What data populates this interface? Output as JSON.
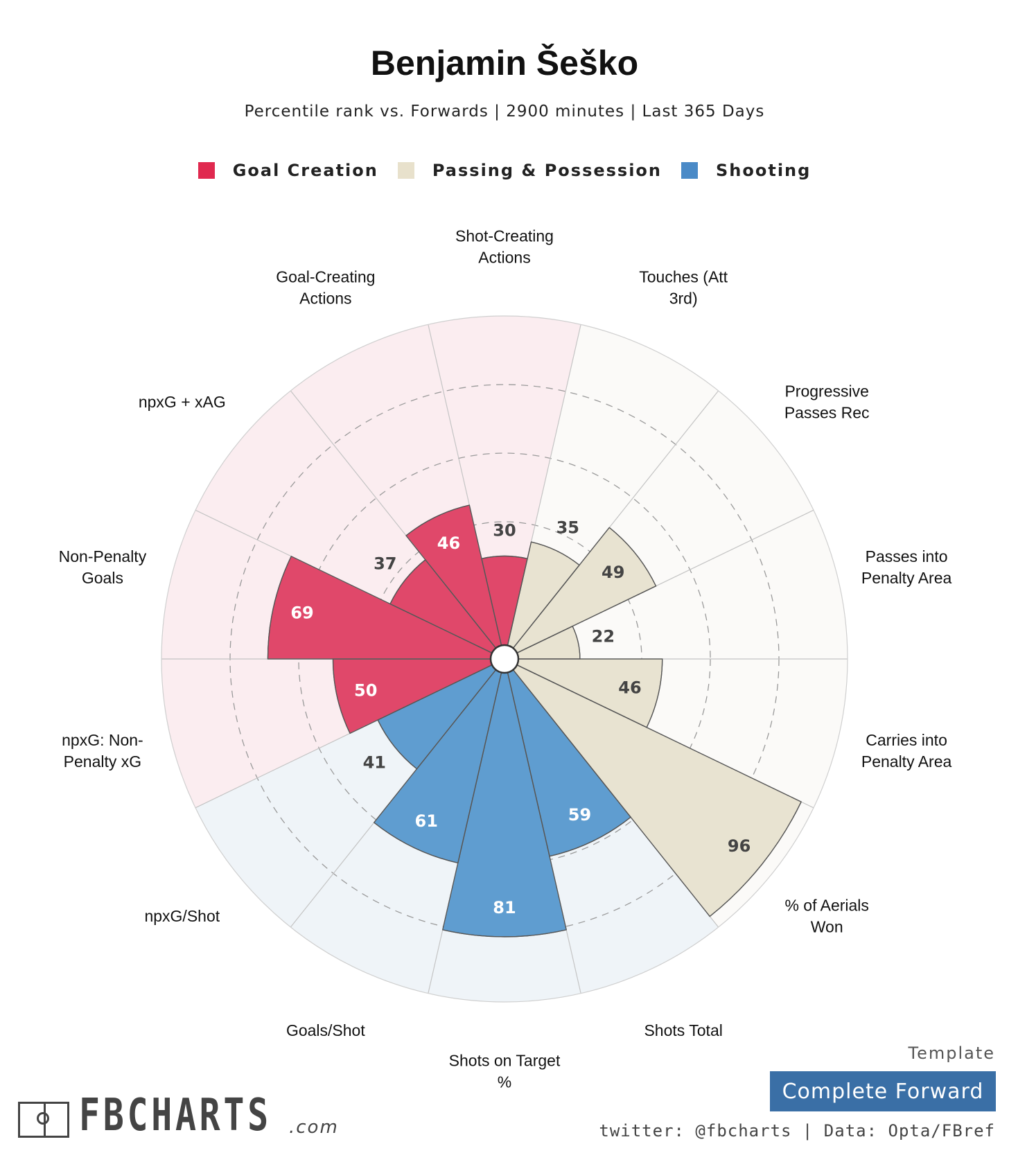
{
  "title": "Benjamin Šeško",
  "subtitle": "Percentile rank vs. Forwards | 2900 minutes | Last 365 Days",
  "legend": [
    {
      "label": "Goal Creation",
      "color": "#e0294f"
    },
    {
      "label": "Passing & Possession",
      "color": "#e8e1cc"
    },
    {
      "label": "Shooting",
      "color": "#4a8ac7"
    }
  ],
  "chart_data": {
    "type": "polar-bar",
    "rlim": [
      0,
      100
    ],
    "grid_rings": [
      20,
      40,
      60,
      80
    ],
    "categories": [
      {
        "name": "Shot-Creating\nActions",
        "value": 30,
        "group": "Goal Creation"
      },
      {
        "name": "Touches (Att\n3rd)",
        "value": 35,
        "group": "Passing & Possession"
      },
      {
        "name": "Progressive\nPasses Rec",
        "value": 49,
        "group": "Passing & Possession"
      },
      {
        "name": "Passes into\nPenalty Area",
        "value": 22,
        "group": "Passing & Possession"
      },
      {
        "name": "Carries into\nPenalty Area",
        "value": 46,
        "group": "Passing & Possession"
      },
      {
        "name": "% of Aerials\nWon",
        "value": 96,
        "group": "Passing & Possession"
      },
      {
        "name": "Shots Total",
        "value": 59,
        "group": "Shooting"
      },
      {
        "name": "Shots on Target\n%",
        "value": 81,
        "group": "Shooting"
      },
      {
        "name": "Goals/Shot",
        "value": 61,
        "group": "Shooting"
      },
      {
        "name": "npxG/Shot",
        "value": 41,
        "group": "Shooting"
      },
      {
        "name": "npxG: Non-\nPenalty xG",
        "value": 50,
        "group": "Goal Creation"
      },
      {
        "name": "Non-Penalty\nGoals",
        "value": 69,
        "group": "Goal Creation"
      },
      {
        "name": "npxG + xAG",
        "value": 37,
        "group": "Goal Creation"
      },
      {
        "name": "Goal-Creating\nActions",
        "value": 46,
        "group": "Goal Creation"
      }
    ],
    "group_styles": {
      "Goal Creation": {
        "bar": "#e0486a",
        "bg": "#fbedf0",
        "text": "#ffffff"
      },
      "Passing & Possession": {
        "bar": "#e8e3d1",
        "bg": "#fbfaf8",
        "text": "#444444"
      },
      "Shooting": {
        "bar": "#5f9dd0",
        "bg": "#eff4f8",
        "text": "#ffffff"
      }
    }
  },
  "template": {
    "label": "Template",
    "name": "Complete Forward"
  },
  "logo": {
    "text": "FBCHARTS",
    "suffix": ".com"
  },
  "credits": "twitter: @fbcharts | Data: Opta/FBref"
}
